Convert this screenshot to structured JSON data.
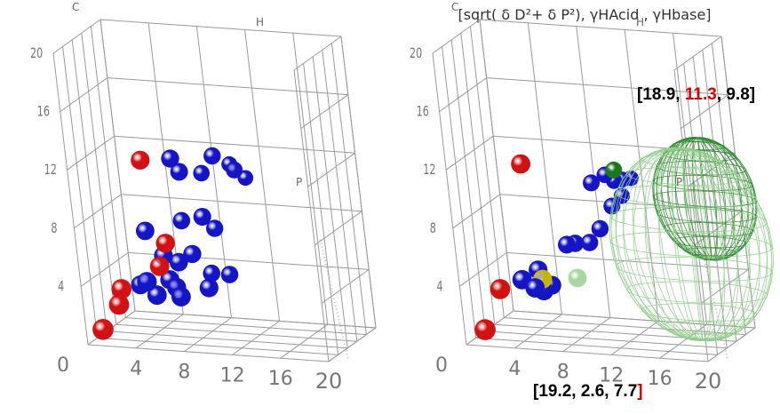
{
  "title": "[sqrt( δ D²+ δ P²), γHAcid , γHbase]",
  "colors": {
    "grid": "#9a9a9a",
    "blue_point": "#1515c8",
    "red_point": "#d41111",
    "olive_point": "#c8b400",
    "green_point": "#1a7a1a",
    "light_green_point": "#a8d8a0",
    "dark_sphere": "#2e8a2e",
    "light_sphere": "#8fcf8a",
    "highlight": "#e00000",
    "annotation": "#000000"
  },
  "chart_data": [
    {
      "type": "scatter",
      "mode": "3d",
      "panel": "left",
      "axis_labels": {
        "corner_c": "C",
        "corner_h": "H",
        "corner_p": "P"
      },
      "x_ticks": [
        "0",
        "4",
        "8",
        "12",
        "16",
        "20"
      ],
      "z_ticks": [
        "20",
        "16",
        "12",
        "8",
        "4"
      ],
      "xlim": [
        0,
        20
      ],
      "ylim": [
        0,
        20
      ],
      "zlim": [
        0,
        20
      ],
      "series": [
        {
          "color": "blue",
          "points": [
            [
              6.6,
              10,
              12
            ],
            [
              7,
              11,
              11
            ],
            [
              8,
              15,
              10.5
            ],
            [
              9.5,
              13,
              12
            ],
            [
              10,
              17,
              11
            ],
            [
              11,
              14,
              11
            ],
            [
              11,
              18,
              10
            ],
            [
              8.5,
              11,
              8
            ],
            [
              9,
              13,
              7
            ],
            [
              6.5,
              12,
              7.5
            ],
            [
              4,
              9,
              7
            ],
            [
              5.5,
              8,
              5.5
            ],
            [
              6.5,
              9,
              5
            ],
            [
              7.5,
              10,
              5.5
            ],
            [
              8.5,
              12,
              4
            ],
            [
              10,
              12,
              4
            ],
            [
              9,
              8,
              3.5
            ],
            [
              6.5,
              7,
              3.5
            ],
            [
              3.5,
              7,
              3.5
            ],
            [
              5,
              6,
              3
            ],
            [
              4.5,
              5,
              4
            ],
            [
              6,
              7,
              4
            ],
            [
              7,
              6,
              3
            ]
          ]
        },
        {
          "color": "red",
          "points": [
            [
              4.5,
              8,
              12
            ],
            [
              6,
              7,
              6.5
            ],
            [
              5.5,
              6,
              5
            ],
            [
              2.5,
              4,
              3.5
            ],
            [
              2.3,
              3.3,
              2.5
            ],
            [
              1.2,
              1,
              1
            ]
          ]
        }
      ]
    },
    {
      "type": "scatter",
      "mode": "3d",
      "panel": "right",
      "axis_labels": {
        "corner_c": "C",
        "corner_h": "H",
        "corner_p": "P"
      },
      "x_ticks": [
        "0",
        "4",
        "8",
        "12",
        "16",
        "20"
      ],
      "z_ticks": [
        "20",
        "16",
        "12",
        "8",
        "4"
      ],
      "xlim": [
        0,
        20
      ],
      "ylim": [
        0,
        20
      ],
      "zlim": [
        0,
        20
      ],
      "annotations": [
        {
          "parts": [
            "[18.9, ",
            "11.3",
            ", 9.8]"
          ],
          "highlight_index": 1
        },
        {
          "parts": [
            "[19.2, 2.6, ",
            "7.7",
            "]"
          ],
          "highlight_index": 2
        }
      ],
      "spheres": [
        {
          "center": [
            18.9,
            11.3,
            9.8
          ],
          "radius": 4.2,
          "color": "dark"
        },
        {
          "center": [
            19.2,
            2.6,
            7.7
          ],
          "radius": 6.6,
          "color": "light"
        }
      ],
      "series": [
        {
          "color": "blue",
          "points": [
            [
              9,
              14,
              10
            ],
            [
              10,
              15,
              10.5
            ],
            [
              10.5,
              16,
              10
            ],
            [
              11,
              17,
              10
            ],
            [
              11.5,
              18,
              10
            ],
            [
              11,
              16,
              9
            ],
            [
              10.5,
              14,
              8.5
            ],
            [
              9.5,
              13,
              7
            ],
            [
              8.5,
              13,
              6
            ],
            [
              7.5,
              12,
              6
            ],
            [
              7,
              11,
              6
            ],
            [
              5,
              6,
              3.5
            ],
            [
              5.5,
              7,
              3.2
            ],
            [
              6,
              8,
              3.5
            ],
            [
              5,
              8,
              4.5
            ],
            [
              4,
              6,
              4
            ]
          ]
        },
        {
          "color": "red",
          "points": [
            [
              5,
              6,
              12
            ],
            [
              2.5,
              4,
              3.5
            ],
            [
              1.5,
              1,
              1
            ]
          ]
        },
        {
          "color": "olive",
          "points": [
            [
              5.5,
              7,
              4
            ]
          ]
        },
        {
          "color": "green",
          "points": [
            [
              11,
              14,
              11
            ]
          ]
        },
        {
          "color": "light_green",
          "points": [
            [
              8,
              9,
              4
            ]
          ]
        }
      ]
    }
  ]
}
